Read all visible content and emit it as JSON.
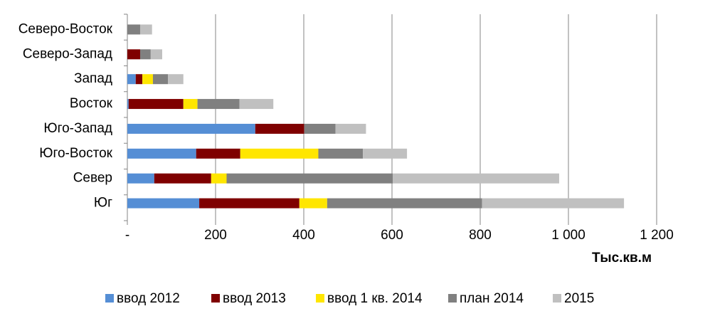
{
  "chart_data": {
    "type": "stacked-hbar",
    "categories": [
      "Северо-Восток",
      "Северо-Запад",
      "Запад",
      "Восток",
      "Юго-Запад",
      "Юго-Восток",
      "Север",
      "Юг"
    ],
    "series": [
      {
        "name": "ввод 2012",
        "color": "#558ed5",
        "values": [
          0,
          0,
          19,
          3,
          290,
          156,
          61,
          163
        ]
      },
      {
        "name": "ввод 2013",
        "color": "#7f0000",
        "values": [
          0,
          29,
          15,
          124,
          111,
          100,
          129,
          227
        ]
      },
      {
        "name": "ввод 1 кв. 2014",
        "color": "#ffe600",
        "values": [
          0,
          0,
          24,
          32,
          0,
          177,
          35,
          63
        ]
      },
      {
        "name": "план 2014",
        "color": "#808080",
        "values": [
          29,
          24,
          34,
          95,
          71,
          101,
          377,
          351
        ]
      },
      {
        "name": "2015",
        "color": "#c0c0c0",
        "values": [
          27,
          26,
          35,
          77,
          69,
          100,
          377,
          322
        ]
      }
    ],
    "xlim": [
      0,
      1200
    ],
    "xticks": [
      {
        "value": 0,
        "label": "-"
      },
      200,
      400,
      600,
      800,
      {
        "value": 1000,
        "label": "1 000"
      },
      {
        "value": 1200,
        "label": "1 200"
      }
    ],
    "x_label": "Тыс.кв.м",
    "grid": true
  }
}
